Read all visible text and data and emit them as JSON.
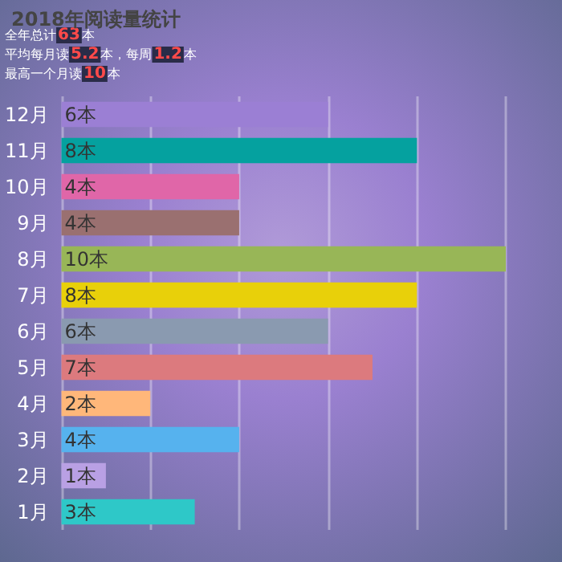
{
  "chart_data": {
    "type": "bar",
    "orientation": "horizontal",
    "title": "2018年阅读量统计",
    "annotations": [
      "全年总计63本",
      "平均每月读5.2本，每周1.2本",
      "最高一个月读10本"
    ],
    "categories": [
      "12月",
      "11月",
      "10月",
      "9月",
      "8月",
      "7月",
      "6月",
      "5月",
      "4月",
      "3月",
      "2月",
      "1月"
    ],
    "values": [
      6,
      8,
      4,
      4,
      10,
      8,
      6,
      7,
      2,
      4,
      1,
      3
    ],
    "value_labels": [
      "6本",
      "8本",
      "4本",
      "4本",
      "10本",
      "8本",
      "6本",
      "7本",
      "2本",
      "4本",
      "1本",
      "3本"
    ],
    "colors": [
      "#9b7fd4",
      "#05a19f",
      "#e066a8",
      "#9a7070",
      "#98b657",
      "#e8d00a",
      "#8a9ab0",
      "#dc7a7e",
      "#ffb77a",
      "#56b2ee",
      "#b9a0e4",
      "#2ec8c8"
    ],
    "xlim": [
      0,
      10
    ],
    "xticks": [
      {
        "value": 0,
        "label": null
      },
      {
        "value": 2,
        "label": null
      },
      {
        "value": 4,
        "label": null
      },
      {
        "value": 6,
        "label": null
      },
      {
        "value": 8,
        "label": null
      },
      {
        "value": 10,
        "label": null
      }
    ],
    "tick_labels": "y",
    "grid": "x"
  }
}
